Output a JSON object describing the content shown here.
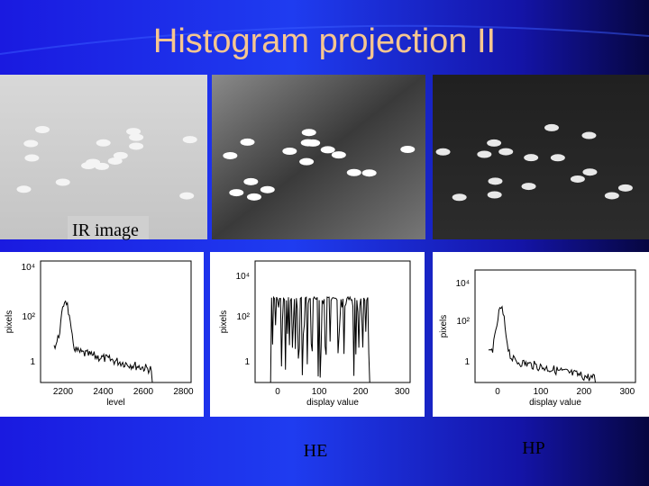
{
  "title": "Histogram projection II",
  "image_label": "IR image",
  "plots": [
    {
      "ylabel": "pixels",
      "yticks": [
        "10⁴",
        "10²",
        "1"
      ],
      "xticks": [
        "2200",
        "2400",
        "2600",
        "2800"
      ],
      "xlabel": "level"
    },
    {
      "ylabel": "pixels",
      "yticks": [
        "10⁴",
        "10²",
        "1"
      ],
      "xticks": [
        "0",
        "100",
        "200",
        "300"
      ],
      "xlabel": "display value"
    },
    {
      "ylabel": "pixels",
      "yticks": [
        "10⁴",
        "10²",
        "1"
      ],
      "xticks": [
        "0",
        "100",
        "200",
        "300"
      ],
      "xlabel": "display value"
    }
  ],
  "captions": [
    "HE",
    "HP"
  ]
}
